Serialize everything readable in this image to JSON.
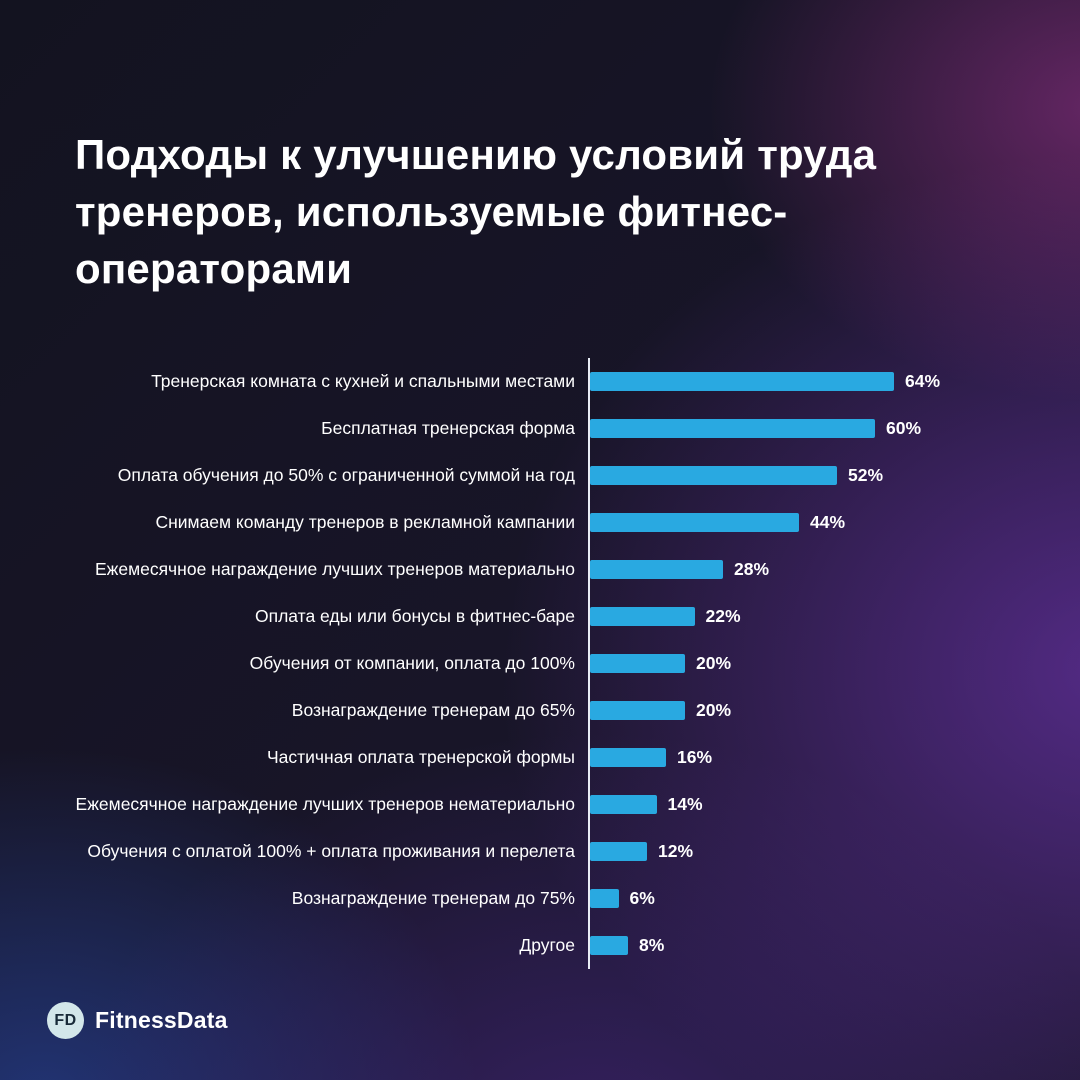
{
  "header": {
    "title_lines": [
      "Подходы к улучшению условий труда",
      "тренеров, используемые фитнес-",
      "операторами"
    ]
  },
  "chart_data": {
    "type": "bar",
    "orientation": "horizontal",
    "title": "Подходы к улучшению условий труда тренеров, используемые фитнес-операторами",
    "categories": [
      "Тренерская комната с кухней и спальными местами",
      "Бесплатная тренерская форма",
      "Оплата обучения до 50% с ограниченной суммой на год",
      "Снимаем команду тренеров в рекламной кампании",
      "Ежемесячное награждение лучших тренеров материально",
      "Оплата еды или бонусы в фитнес-баре",
      "Обучения от компании, оплата до 100%",
      "Вознаграждение тренерам до 65%",
      "Частичная оплата тренерской формы",
      "Ежемесячное награждение лучших тренеров нематериально",
      "Обучения с оплатой 100% + оплата проживания и перелета",
      "Вознаграждение тренерам до 75%",
      "Другое"
    ],
    "values": [
      64,
      60,
      52,
      44,
      28,
      22,
      20,
      20,
      16,
      14,
      12,
      6,
      8
    ],
    "value_labels": [
      "64%",
      "60%",
      "52%",
      "44%",
      "28%",
      "22%",
      "20%",
      "20%",
      "16%",
      "14%",
      "12%",
      "6%",
      "8%"
    ],
    "unit": "%",
    "xlim": [
      0,
      100
    ],
    "grid": false,
    "legend": false,
    "bar_color": "#29a9e1",
    "axis_color": "#e9edf5"
  },
  "footer": {
    "logo_initials": "FD",
    "brand": "FitnessData",
    "logo_bg_color": "#d3e7ea",
    "logo_text_color": "#182a38"
  }
}
